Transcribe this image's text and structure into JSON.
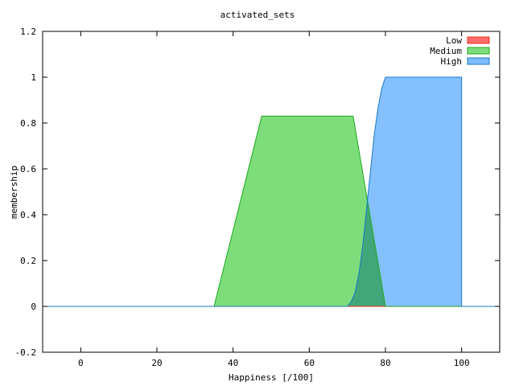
{
  "chart_data": {
    "type": "area",
    "title": "activated_sets",
    "xlabel": "Happiness [/100]",
    "ylabel": "membership",
    "xlim": [
      -10,
      110
    ],
    "ylim": [
      -0.2,
      1.2
    ],
    "xticks": [
      0,
      20,
      40,
      60,
      80,
      100
    ],
    "xtick_labels": [
      "0",
      "20",
      "40",
      "60",
      "80",
      "100"
    ],
    "yticks": [
      -0.2,
      0,
      0.2,
      0.4,
      0.6,
      0.8,
      1,
      1.2
    ],
    "ytick_labels": [
      "-0.2",
      "0",
      "0.2",
      "0.4",
      "0.6",
      "0.8",
      "1",
      "1.2"
    ],
    "grid": false,
    "legend": "top-right",
    "series": [
      {
        "name": "Low",
        "fill": "#ff6b6b",
        "stroke": "#e8321e",
        "points": [
          [
            -10,
            0
          ],
          [
            110,
            0
          ]
        ]
      },
      {
        "name": "Medium",
        "fill": "#7ddd7b",
        "stroke": "#1fa81f",
        "points": [
          [
            -10,
            0
          ],
          [
            35,
            0
          ],
          [
            47.5,
            0.83
          ],
          [
            71.5,
            0.83
          ],
          [
            80,
            0
          ],
          [
            110,
            0
          ]
        ]
      },
      {
        "name": "High",
        "fill": "#7dbdfd",
        "stroke": "#1a78c8",
        "points": [
          [
            -10,
            0
          ],
          [
            70,
            0
          ],
          [
            71,
            0.02
          ],
          [
            72,
            0.06
          ],
          [
            73,
            0.14
          ],
          [
            74,
            0.26
          ],
          [
            75,
            0.42
          ],
          [
            76,
            0.58
          ],
          [
            77,
            0.74
          ],
          [
            78,
            0.86
          ],
          [
            79,
            0.95
          ],
          [
            80,
            1
          ],
          [
            100,
            1
          ],
          [
            100,
            0
          ],
          [
            110,
            0
          ]
        ]
      }
    ]
  }
}
